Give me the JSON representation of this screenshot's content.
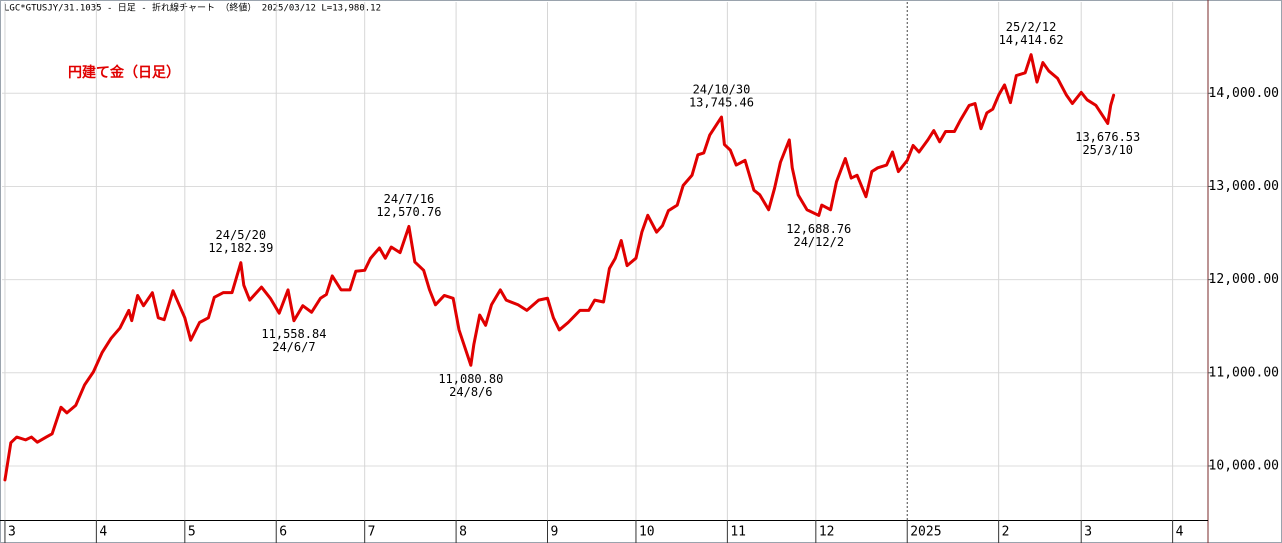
{
  "chart_data": {
    "type": "line",
    "title": "LGC*GTUSJY/31.1035 - 日足 - 折れ線チャート （終値） 2025/03/12 L=13,980.12",
    "subtitle": "円建て金（日足）",
    "color": "#e00000",
    "grid": true,
    "xlim": [
      "2024-02-29",
      "2025-04-13"
    ],
    "ylim": [
      9420,
      14980
    ],
    "yticks": [
      {
        "value": 10000,
        "label": "10,000.00"
      },
      {
        "value": 11000,
        "label": "11,000.00"
      },
      {
        "value": 12000,
        "label": "12,000.00"
      },
      {
        "value": 13000,
        "label": "13,000.00"
      },
      {
        "value": 14000,
        "label": "14,000.00"
      }
    ],
    "xticks": [
      {
        "value": "2024-03-01",
        "label": "3"
      },
      {
        "value": "2024-04-01",
        "label": "4"
      },
      {
        "value": "2024-05-01",
        "label": "5"
      },
      {
        "value": "2024-06-01",
        "label": "6"
      },
      {
        "value": "2024-07-01",
        "label": "7"
      },
      {
        "value": "2024-08-01",
        "label": "8"
      },
      {
        "value": "2024-09-01",
        "label": "9"
      },
      {
        "value": "2024-10-01",
        "label": "10"
      },
      {
        "value": "2024-11-01",
        "label": "11"
      },
      {
        "value": "2024-12-01",
        "label": "12"
      },
      {
        "value": "2025-01-01",
        "label": "2025",
        "line_style": "dashed"
      },
      {
        "value": "2025-02-01",
        "label": "2"
      },
      {
        "value": "2025-03-01",
        "label": "3"
      },
      {
        "value": "2025-04-01",
        "label": "4"
      }
    ],
    "x": [
      "2024-03-01",
      "2024-03-03",
      "2024-03-05",
      "2024-03-08",
      "2024-03-10",
      "2024-03-12",
      "2024-03-15",
      "2024-03-17",
      "2024-03-20",
      "2024-03-22",
      "2024-03-25",
      "2024-03-28",
      "2024-03-31",
      "2024-04-03",
      "2024-04-06",
      "2024-04-09",
      "2024-04-12",
      "2024-04-13",
      "2024-04-15",
      "2024-04-17",
      "2024-04-20",
      "2024-04-22",
      "2024-04-24",
      "2024-04-27",
      "2024-05-01",
      "2024-05-03",
      "2024-05-06",
      "2024-05-09",
      "2024-05-11",
      "2024-05-14",
      "2024-05-17",
      "2024-05-20",
      "2024-05-21",
      "2024-05-23",
      "2024-05-27",
      "2024-05-30",
      "2024-06-02",
      "2024-06-05",
      "2024-06-07",
      "2024-06-10",
      "2024-06-13",
      "2024-06-16",
      "2024-06-18",
      "2024-06-20",
      "2024-06-23",
      "2024-06-26",
      "2024-06-28",
      "2024-07-01",
      "2024-07-03",
      "2024-07-06",
      "2024-07-08",
      "2024-07-10",
      "2024-07-13",
      "2024-07-16",
      "2024-07-18",
      "2024-07-21",
      "2024-07-23",
      "2024-07-25",
      "2024-07-28",
      "2024-07-31",
      "2024-08-02",
      "2024-08-06",
      "2024-08-07",
      "2024-08-09",
      "2024-08-11",
      "2024-08-13",
      "2024-08-16",
      "2024-08-18",
      "2024-08-22",
      "2024-08-25",
      "2024-08-29",
      "2024-09-01",
      "2024-09-03",
      "2024-09-05",
      "2024-09-08",
      "2024-09-12",
      "2024-09-15",
      "2024-09-17",
      "2024-09-20",
      "2024-09-22",
      "2024-09-24",
      "2024-09-26",
      "2024-09-28",
      "2024-10-01",
      "2024-10-03",
      "2024-10-05",
      "2024-10-08",
      "2024-10-10",
      "2024-10-12",
      "2024-10-15",
      "2024-10-17",
      "2024-10-20",
      "2024-10-22",
      "2024-10-24",
      "2024-10-26",
      "2024-10-30",
      "2024-10-31",
      "2024-11-02",
      "2024-11-04",
      "2024-11-07",
      "2024-11-10",
      "2024-11-12",
      "2024-11-15",
      "2024-11-17",
      "2024-11-19",
      "2024-11-22",
      "2024-11-23",
      "2024-11-25",
      "2024-11-28",
      "2024-12-02",
      "2024-12-03",
      "2024-12-06",
      "2024-12-08",
      "2024-12-11",
      "2024-12-13",
      "2024-12-15",
      "2024-12-18",
      "2024-12-20",
      "2024-12-22",
      "2024-12-25",
      "2024-12-27",
      "2024-12-29",
      "2025-01-01",
      "2025-01-03",
      "2025-01-05",
      "2025-01-08",
      "2025-01-10",
      "2025-01-12",
      "2025-01-14",
      "2025-01-17",
      "2025-01-19",
      "2025-01-22",
      "2025-01-24",
      "2025-01-26",
      "2025-01-28",
      "2025-01-30",
      "2025-02-01",
      "2025-02-03",
      "2025-02-05",
      "2025-02-07",
      "2025-02-10",
      "2025-02-12",
      "2025-02-14",
      "2025-02-16",
      "2025-02-18",
      "2025-02-21",
      "2025-02-24",
      "2025-02-26",
      "2025-03-01",
      "2025-03-03",
      "2025-03-06",
      "2025-03-10",
      "2025-03-11",
      "2025-03-12"
    ],
    "values": [
      9850,
      10250,
      10310,
      10280,
      10310,
      10255,
      10310,
      10345,
      10630,
      10570,
      10650,
      10870,
      11010,
      11220,
      11370,
      11480,
      11670,
      11560,
      11830,
      11720,
      11860,
      11590,
      11570,
      11880,
      11590,
      11350,
      11540,
      11590,
      11810,
      11860,
      11860,
      12182.39,
      11940,
      11780,
      11920,
      11800,
      11640,
      11890,
      11558.84,
      11720,
      11650,
      11800,
      11840,
      12040,
      11890,
      11890,
      12090,
      12100,
      12230,
      12340,
      12230,
      12350,
      12290,
      12570.76,
      12190,
      12100,
      11890,
      11730,
      11830,
      11800,
      11460,
      11080.8,
      11300,
      11620,
      11510,
      11730,
      11890,
      11780,
      11730,
      11670,
      11780,
      11800,
      11590,
      11460,
      11540,
      11670,
      11670,
      11780,
      11760,
      12120,
      12230,
      12420,
      12150,
      12230,
      12510,
      12690,
      12510,
      12580,
      12740,
      12800,
      13010,
      13120,
      13340,
      13360,
      13550,
      13745.46,
      13450,
      13390,
      13230,
      13280,
      12960,
      12910,
      12750,
      12980,
      13260,
      13500,
      13200,
      12910,
      12750,
      12688.76,
      12800,
      12750,
      13050,
      13300,
      13090,
      13120,
      12890,
      13160,
      13200,
      13230,
      13370,
      13160,
      13280,
      13440,
      13370,
      13500,
      13600,
      13480,
      13590,
      13590,
      13710,
      13870,
      13890,
      13620,
      13790,
      13830,
      13980,
      14090,
      13900,
      14190,
      14220,
      14414.62,
      14120,
      14330,
      14240,
      14160,
      13980,
      13890,
      14010,
      13930,
      13870,
      13676.53,
      13870,
      13980.12
    ],
    "annotations": [
      {
        "x": "2024-05-20",
        "y": 12182.39,
        "date_label": "24/5/20",
        "value_label": "12,182.39",
        "position": "above"
      },
      {
        "x": "2024-06-07",
        "y": 11558.84,
        "date_label": "24/6/7",
        "value_label": "11,558.84",
        "position": "below"
      },
      {
        "x": "2024-07-16",
        "y": 12570.76,
        "date_label": "24/7/16",
        "value_label": "12,570.76",
        "position": "above"
      },
      {
        "x": "2024-08-06",
        "y": 11080.8,
        "date_label": "24/8/6",
        "value_label": "11,080.80",
        "position": "below"
      },
      {
        "x": "2024-10-30",
        "y": 13745.46,
        "date_label": "24/10/30",
        "value_label": "13,745.46",
        "position": "above"
      },
      {
        "x": "2024-12-02",
        "y": 12688.76,
        "date_label": "24/12/2",
        "value_label": "12,688.76",
        "position": "below"
      },
      {
        "x": "2025-02-12",
        "y": 14414.62,
        "date_label": "25/2/12",
        "value_label": "14,414.62",
        "position": "above"
      },
      {
        "x": "2025-03-10",
        "y": 13676.53,
        "date_label": "25/3/10",
        "value_label": "13,676.53",
        "position": "below"
      }
    ]
  }
}
